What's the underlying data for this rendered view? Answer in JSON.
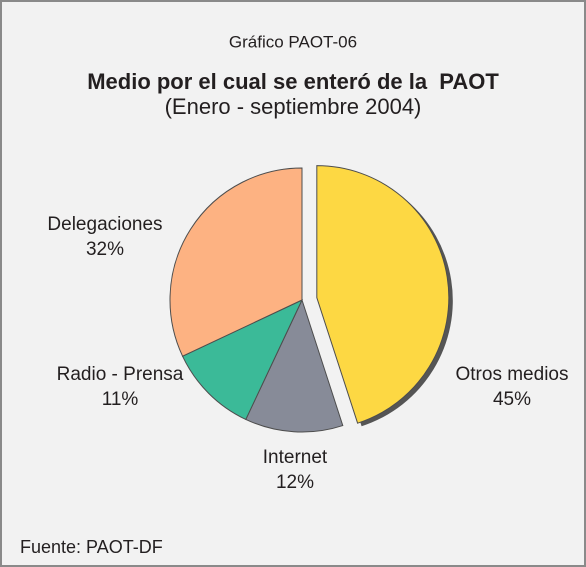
{
  "chart_data": {
    "type": "pie",
    "header": "Gráfico PAOT-06",
    "title": "Medio por el cual se enteró de la  PAOT",
    "subtitle": "(Enero - septiembre 2004)",
    "source": "Fuente: PAOT-DF",
    "categories": [
      "Otros medios",
      "Internet",
      "Radio - Prensa",
      "Delegaciones"
    ],
    "values": [
      45,
      12,
      11,
      32
    ],
    "value_labels": [
      "45%",
      "12%",
      "11%",
      "32%"
    ],
    "colors": [
      "#fdd843",
      "#878b98",
      "#3bba98",
      "#fdb282"
    ],
    "explode": [
      true,
      false,
      false,
      false
    ]
  }
}
